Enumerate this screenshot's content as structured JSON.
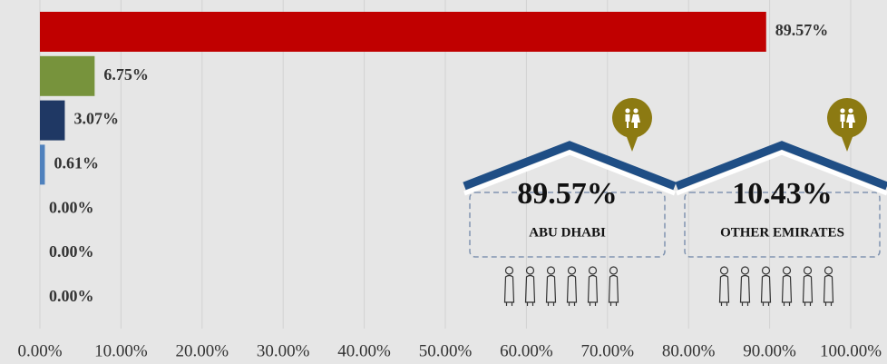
{
  "chart_data": {
    "type": "hbar",
    "categories": [
      null,
      null,
      null,
      null,
      null,
      null,
      null
    ],
    "values": [
      89.57,
      6.75,
      3.07,
      0.61,
      0,
      0,
      0
    ],
    "value_labels": [
      "89.57%",
      "6.75%",
      "3.07%",
      "0.61%",
      "0.00%",
      "0.00%",
      "0.00%"
    ],
    "colors": [
      "#c00000",
      "#77933c",
      "#1f3864",
      "#4f81bd",
      "#4f81bd",
      "#4f81bd",
      "#4f81bd"
    ],
    "xlim": [
      0,
      100
    ],
    "xticks": [
      {
        "value": 0,
        "label": "0.00%"
      },
      {
        "value": 10,
        "label": "10.00%"
      },
      {
        "value": 20,
        "label": "20.00%"
      },
      {
        "value": 30,
        "label": "30.00%"
      },
      {
        "value": 40,
        "label": "40.00%"
      },
      {
        "value": 50,
        "label": "50.00%"
      },
      {
        "value": 60,
        "label": "60.00%"
      },
      {
        "value": 70,
        "label": "70.00%"
      },
      {
        "value": 80,
        "label": "80.00%"
      },
      {
        "value": 90,
        "label": "90.00%"
      },
      {
        "value": 100,
        "label": "100.00%"
      }
    ],
    "grid": true,
    "callouts": [
      {
        "label": "89.57%",
        "name": "ABU DHABI"
      },
      {
        "label": "10.43%",
        "name": "OTHER EMIRATES"
      }
    ]
  }
}
